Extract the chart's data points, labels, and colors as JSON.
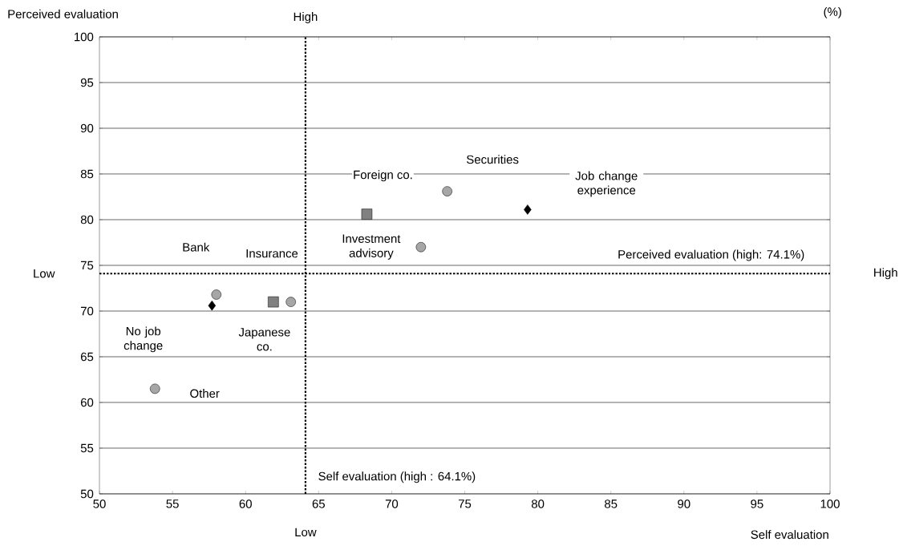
{
  "chart_data": {
    "type": "scatter",
    "xlabel": "Self evaluation",
    "ylabel": "Perceived evaluation",
    "xlim": [
      50,
      100
    ],
    "xticks": [
      50,
      55,
      60,
      65,
      70,
      75,
      80,
      85,
      90,
      95,
      100
    ],
    "ylim": [
      50,
      100
    ],
    "yticks": [
      50,
      55,
      60,
      65,
      70,
      75,
      80,
      85,
      90,
      95,
      100
    ],
    "grid": "y",
    "series": [
      {
        "x": [
          73.8,
          72.0,
          58.0,
          63.1,
          53.8
        ],
        "values": [
          83.1,
          77.0,
          71.8,
          71.0,
          61.5
        ],
        "color": "#a6a6a6",
        "marker": "circle"
      },
      {
        "x": [
          68.3,
          61.9
        ],
        "values": [
          80.6,
          71.0
        ],
        "color": "#808080",
        "marker": "square"
      },
      {
        "x": [
          79.3,
          57.7
        ],
        "values": [
          81.1,
          70.6
        ],
        "color": "#000000",
        "marker": "diamond"
      }
    ],
    "ref_lines": [
      {
        "axis": "y",
        "value": 74.1,
        "label": "Perceived evaluation (high: 74.1%)",
        "line_style": "dotted"
      },
      {
        "axis": "x",
        "value": 64.1,
        "label": "Self evaluation (high : 64.1%)",
        "line_style": "dotted"
      }
    ],
    "annotations": [
      "(%)",
      "Foreign co.",
      "Securities",
      "Job change experience",
      "Bank",
      "Insurance",
      "Investment advisory",
      "No job change",
      "Japanese co.",
      "Other",
      "High",
      "Low",
      "Low",
      "High"
    ]
  }
}
